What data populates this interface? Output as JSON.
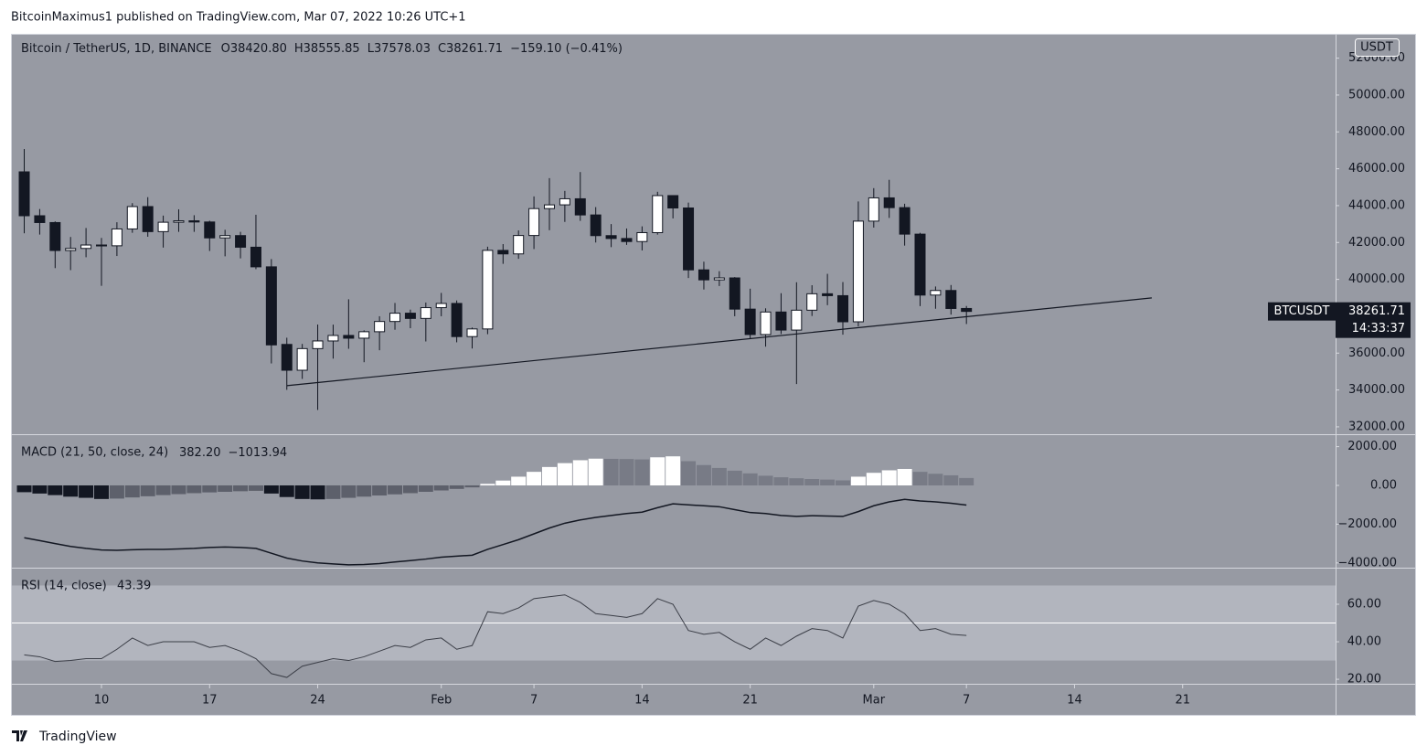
{
  "header": {
    "published": "BitcoinMaximus1 published on TradingView.com, Mar 07, 2022 10:26 UTC+1",
    "brand": "TradingView"
  },
  "chart_data": {
    "type": "candlestick",
    "legend": {
      "symbol": "Bitcoin / TetherUS, 1D, BINANCE",
      "items": [
        {
          "key": "O",
          "text": "38420.80"
        },
        {
          "key": "H",
          "text": "38555.85"
        },
        {
          "key": "L",
          "text": "37578.03"
        },
        {
          "key": "C",
          "text": "38261.71"
        }
      ],
      "change": "−159.10 (−0.41%)"
    },
    "currency": "USDT",
    "symbol": "BTCUSDT",
    "countdown": "14:33:37",
    "xlim": [
      -0.8,
      84.9
    ],
    "xticks": [
      {
        "value": 5,
        "label": "10"
      },
      {
        "value": 12,
        "label": "17"
      },
      {
        "value": 19,
        "label": "24"
      },
      {
        "value": 27,
        "label": "Feb"
      },
      {
        "value": 33,
        "label": "7"
      },
      {
        "value": 40,
        "label": "14"
      },
      {
        "value": 47,
        "label": "21"
      },
      {
        "value": 55,
        "label": "Mar"
      },
      {
        "value": 61,
        "label": "7"
      },
      {
        "value": 68,
        "label": "14"
      },
      {
        "value": 75,
        "label": "21"
      }
    ],
    "ylim": [
      31600,
      53320
    ],
    "yticks": [
      {
        "value": 32000,
        "label": "32000.00"
      },
      {
        "value": 34000,
        "label": "34000.00"
      },
      {
        "value": 36000,
        "label": "36000.00"
      },
      {
        "value": 38000,
        "label": "38000.00"
      },
      {
        "value": 40000,
        "label": "40000.00"
      },
      {
        "value": 42000,
        "label": "42000.00"
      },
      {
        "value": 44000,
        "label": "44000.00"
      },
      {
        "value": 46000,
        "label": "46000.00"
      },
      {
        "value": 48000,
        "label": "48000.00"
      },
      {
        "value": 50000,
        "label": "50000.00"
      },
      {
        "value": 52000,
        "label": "52000.00"
      }
    ],
    "up_color": "#ffffff",
    "down_color": "#131722",
    "open": [
      45832,
      43451,
      43082,
      41566,
      41679,
      41864,
      41822,
      42735,
      43949,
      42591,
      43099,
      43177,
      43113,
      42250,
      42375,
      41744,
      40680,
      36471,
      35071,
      36244,
      36660,
      36958,
      36809,
      37160,
      37716,
      38166,
      37881,
      38466,
      38694,
      36896,
      37311,
      41571,
      41382,
      42380,
      43839,
      44043,
      44372,
      43495,
      42373,
      42217,
      42053,
      42535,
      44544,
      43873,
      40515,
      39974,
      40079,
      38386,
      37008,
      38230,
      37250,
      38328,
      39219,
      39116,
      37699,
      43160,
      44421,
      43892,
      42454,
      39148,
      39397,
      38420.8
    ],
    "high": [
      47070,
      43816,
      43145,
      42300,
      42786,
      42248,
      43100,
      44135,
      44459,
      43459,
      43800,
      43480,
      43180,
      42691,
      42578,
      43505,
      41100,
      36835,
      36499,
      37550,
      37545,
      38919,
      37234,
      38000,
      38720,
      38359,
      38744,
      39265,
      38855,
      37387,
      41772,
      41913,
      42656,
      44500,
      45492,
      44799,
      45821,
      43920,
      43000,
      42760,
      42876,
      44751,
      44549,
      44164,
      40959,
      40444,
      40125,
      39494,
      38429,
      39249,
      39843,
      39683,
      40300,
      39855,
      44225,
      44949,
      45400,
      44102,
      42527,
      39613,
      39693,
      38555.85
    ],
    "low": [
      42500,
      42430,
      40610,
      40501,
      41200,
      39650,
      41268,
      42528,
      42311,
      41725,
      42578,
      42578,
      41540,
      41250,
      41138,
      40553,
      35440,
      34008,
      34601,
      32917,
      35701,
      36234,
      35507,
      36155,
      37268,
      37351,
      36632,
      38000,
      36586,
      36250,
      37026,
      40843,
      41116,
      41645,
      42666,
      43117,
      43174,
      42000,
      41748,
      41870,
      41570,
      42427,
      43307,
      40073,
      39450,
      39639,
      38000,
      36800,
      36350,
      37036,
      34322,
      38014,
      38600,
      37000,
      37450,
      42809,
      43334,
      41832,
      38550,
      38407,
      38088,
      37578.03
    ],
    "close": [
      43451,
      43082,
      41566,
      41679,
      41864,
      41822,
      42735,
      43949,
      42591,
      43099,
      43177,
      43113,
      42250,
      42375,
      41744,
      40680,
      36445,
      35071,
      36244,
      36660,
      36958,
      36809,
      37160,
      37716,
      38166,
      37881,
      38466,
      38694,
      36896,
      37311,
      41574,
      41382,
      42380,
      43839,
      44042,
      44372,
      43495,
      42373,
      42217,
      42053,
      42535,
      44544,
      43873,
      40515,
      39974,
      40079,
      38386,
      37008,
      38230,
      37250,
      38328,
      39219,
      39116,
      37699,
      43160,
      44421,
      43892,
      42454,
      39148,
      39397,
      38420,
      38261.71
    ],
    "trendline": {
      "x": [
        17,
        73
      ],
      "y": [
        34234,
        38994
      ],
      "color": "#131722"
    },
    "indicators": [
      {
        "type": "macd",
        "title": "MACD (21, 50, close, 24)",
        "readout": [
          "382.20",
          "−1013.94"
        ],
        "ylim": [
          -4245,
          2594
        ],
        "yticks": [
          {
            "value": 2000,
            "label": "2000.00"
          },
          {
            "value": 0,
            "label": "0.00"
          },
          {
            "value": -2000,
            "label": "−2000.00"
          },
          {
            "value": -4000,
            "label": "−4000.00"
          }
        ],
        "colors": {
          "positive_rising": "#ffffff",
          "positive_falling": "#787b86",
          "negative_falling": "#131722",
          "negative_rising": "#5d606b",
          "line": "#131722"
        },
        "histogram": [
          -350,
          -420,
          -500,
          -580,
          -640,
          -700,
          -680,
          -620,
          -560,
          -500,
          -450,
          -400,
          -360,
          -330,
          -300,
          -280,
          -420,
          -600,
          -700,
          -720,
          -700,
          -640,
          -580,
          -520,
          -460,
          -400,
          -330,
          -260,
          -180,
          -100,
          80,
          250,
          450,
          700,
          950,
          1150,
          1300,
          1380,
          1370,
          1360,
          1340,
          1450,
          1500,
          1250,
          1050,
          900,
          760,
          620,
          500,
          420,
          370,
          330,
          300,
          260,
          450,
          650,
          780,
          850,
          700,
          600,
          520,
          382.2
        ],
        "macd": [
          -2700,
          -2850,
          -3000,
          -3150,
          -3250,
          -3330,
          -3350,
          -3320,
          -3300,
          -3300,
          -3280,
          -3250,
          -3200,
          -3180,
          -3200,
          -3250,
          -3500,
          -3750,
          -3900,
          -4000,
          -4050,
          -4100,
          -4080,
          -4030,
          -3950,
          -3880,
          -3800,
          -3700,
          -3650,
          -3600,
          -3300,
          -3050,
          -2800,
          -2500,
          -2200,
          -1950,
          -1780,
          -1650,
          -1550,
          -1450,
          -1380,
          -1150,
          -950,
          -1000,
          -1050,
          -1100,
          -1250,
          -1400,
          -1450,
          -1550,
          -1600,
          -1560,
          -1580,
          -1600,
          -1350,
          -1050,
          -850,
          -720,
          -800,
          -850,
          -920,
          -1013.94
        ]
      },
      {
        "type": "rsi",
        "title": "RSI (14, close)",
        "ylim": [
          17.6,
          79
        ],
        "yticks": [
          {
            "value": 20,
            "label": "20.00"
          },
          {
            "value": 40,
            "label": "40.00"
          },
          {
            "value": 60,
            "label": "60.00"
          }
        ],
        "bands": [
          30,
          70
        ],
        "midline": 50,
        "color": "#3b3e47",
        "values": [
          33,
          32,
          29.5,
          30,
          31,
          31,
          36,
          42,
          38,
          40,
          40,
          40,
          37,
          38,
          35,
          31,
          23,
          21,
          27,
          29,
          31,
          30,
          32,
          35,
          38,
          37,
          41,
          42,
          36,
          38,
          56,
          55,
          58,
          63,
          64,
          65,
          61,
          55,
          54,
          53,
          55,
          63,
          60,
          46,
          44,
          45,
          40,
          36,
          42,
          38,
          43,
          47,
          46,
          42,
          59,
          62,
          60,
          55,
          46,
          47,
          44,
          43.39
        ]
      }
    ]
  }
}
